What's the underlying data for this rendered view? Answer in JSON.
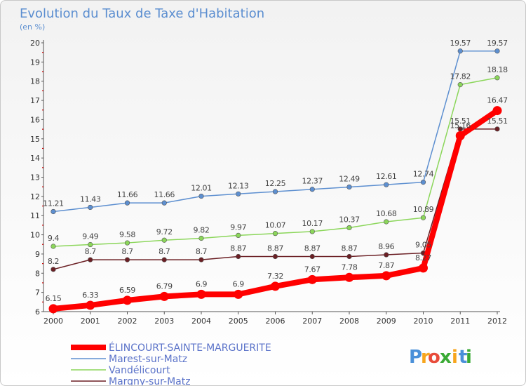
{
  "chart_data": {
    "type": "line",
    "title": "Evolution du Taux de Taxe d'Habitation",
    "ylabel": "(en %)",
    "xlabel": "",
    "ylim": [
      6,
      20
    ],
    "yticks": [
      "6",
      "7",
      "8",
      "9",
      "10",
      "11",
      "12",
      "13",
      "14",
      "15",
      "16",
      "17",
      "18",
      "19",
      "20"
    ],
    "categories": [
      "2000",
      "2001",
      "2002",
      "2003",
      "2004",
      "2005",
      "2006",
      "2007",
      "2008",
      "2009",
      "2010",
      "2011",
      "2012"
    ],
    "series": [
      {
        "name": "Marest-sur-Matz",
        "color": "#5d8fd0",
        "values": [
          11.21,
          11.43,
          11.66,
          11.66,
          12.01,
          12.13,
          12.25,
          12.37,
          12.49,
          12.61,
          12.74,
          19.57,
          19.57
        ],
        "labels": [
          "11.21",
          "11.43",
          "11.66",
          "11.66",
          "12.01",
          "12.13",
          "12.25",
          "12.37",
          "12.49",
          "12.61",
          "12.74",
          "19.57",
          "19.57"
        ]
      },
      {
        "name": "Vandélicourt",
        "color": "#8bd65a",
        "values": [
          9.4,
          9.49,
          9.58,
          9.72,
          9.82,
          9.97,
          10.07,
          10.17,
          10.37,
          10.68,
          10.89,
          17.82,
          18.18
        ],
        "labels": [
          "9.4",
          "9.49",
          "9.58",
          "9.72",
          "9.82",
          "9.97",
          "10.07",
          "10.17",
          "10.37",
          "10.68",
          "10.89",
          "17.82",
          "18.18"
        ]
      },
      {
        "name": "Margny-sur-Matz",
        "color": "#6b1f24",
        "values": [
          8.2,
          8.7,
          8.7,
          8.7,
          8.7,
          8.87,
          8.87,
          8.87,
          8.87,
          8.96,
          9.05,
          15.51,
          15.51
        ],
        "labels": [
          "8.2",
          "8.7",
          "8.7",
          "8.7",
          "8.7",
          "8.87",
          "8.87",
          "8.87",
          "8.87",
          "8.96",
          "9.05",
          "15.51",
          "15.51"
        ]
      },
      {
        "name": "ÉLINCOURT-SAINTE-MARGUERITE",
        "color": "#ff0000",
        "values": [
          6.15,
          6.33,
          6.59,
          6.79,
          6.9,
          6.9,
          7.32,
          7.67,
          7.78,
          7.87,
          8.27,
          15.16,
          16.47
        ],
        "labels": [
          "6.15",
          "6.33",
          "6.59",
          "6.79",
          "6.9",
          "6.9",
          "7.32",
          "7.67",
          "7.78",
          "7.87",
          "8.27",
          "15.16",
          "16.47"
        ]
      }
    ],
    "legend": [
      "ÉLINCOURT-SAINTE-MARGUERITE",
      "Marest-sur-Matz",
      "Vandélicourt",
      "Margny-sur-Matz"
    ],
    "legend_position": "bottom-left",
    "grid": false
  },
  "logo": {
    "letters": [
      "P",
      "r",
      "o",
      "x",
      "i",
      "t",
      "i"
    ],
    "colors": [
      "#4a90d9",
      "#f7a51c",
      "#e84b3a",
      "#3aaa35",
      "#f7a51c",
      "#4a90d9",
      "#3aaa35"
    ]
  }
}
